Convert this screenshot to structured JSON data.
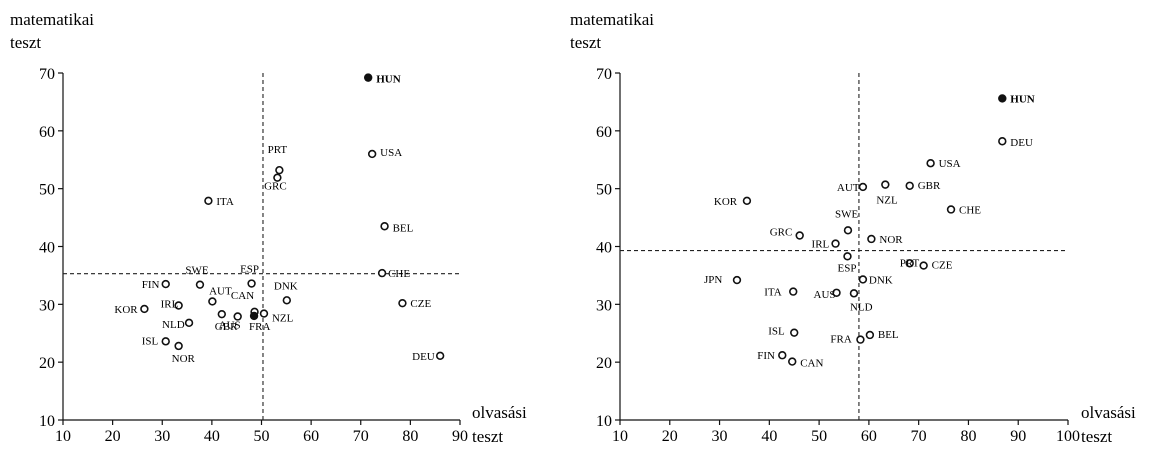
{
  "chart_data": [
    {
      "type": "scatter",
      "ylabel": "matematikai teszt",
      "xlabel": "olvasási teszt",
      "xlim": [
        10,
        90
      ],
      "ylim": [
        10,
        70
      ],
      "xticks": [
        "10",
        "20",
        "30",
        "40",
        "50",
        "60",
        "70",
        "80",
        "90"
      ],
      "yticks": [
        "10",
        "20",
        "30",
        "40",
        "50",
        "60",
        "70"
      ],
      "reference_lines": {
        "x": 50.3,
        "y": 35.3
      },
      "points": [
        {
          "label": "HUN",
          "x": 71.5,
          "y": 69.2,
          "filled": true
        },
        {
          "label": "USA",
          "x": 72.3,
          "y": 56.0,
          "filled": false
        },
        {
          "label": "PRT",
          "x": 53.6,
          "y": 53.2,
          "filled": false
        },
        {
          "label": "GRC",
          "x": 53.2,
          "y": 51.9,
          "filled": false
        },
        {
          "label": "ITA",
          "x": 39.3,
          "y": 47.9,
          "filled": false
        },
        {
          "label": "BEL",
          "x": 74.8,
          "y": 43.5,
          "filled": false
        },
        {
          "label": "CHE",
          "x": 74.3,
          "y": 35.4,
          "filled": false
        },
        {
          "label": "ESP",
          "x": 48.0,
          "y": 33.6,
          "filled": false
        },
        {
          "label": "SWE",
          "x": 37.6,
          "y": 33.4,
          "filled": false
        },
        {
          "label": "FIN",
          "x": 30.7,
          "y": 33.5,
          "filled": false
        },
        {
          "label": "DNK",
          "x": 55.1,
          "y": 30.7,
          "filled": false
        },
        {
          "label": "CZE",
          "x": 78.4,
          "y": 30.2,
          "filled": false
        },
        {
          "label": "AUT",
          "x": 40.1,
          "y": 30.5,
          "filled": false
        },
        {
          "label": "IRL",
          "x": 33.3,
          "y": 29.8,
          "filled": false
        },
        {
          "label": "KOR",
          "x": 26.4,
          "y": 29.2,
          "filled": false
        },
        {
          "label": "CAN",
          "x": 48.6,
          "y": 28.7,
          "filled": false
        },
        {
          "label": "GBR",
          "x": 42.0,
          "y": 28.3,
          "filled": false
        },
        {
          "label": "NZL",
          "x": 50.5,
          "y": 28.4,
          "filled": false
        },
        {
          "label": "FRA",
          "x": 48.5,
          "y": 28.0,
          "filled": true
        },
        {
          "label": "AUS",
          "x": 45.2,
          "y": 27.9,
          "filled": false
        },
        {
          "label": "NLD",
          "x": 35.4,
          "y": 26.8,
          "filled": false
        },
        {
          "label": "ISL",
          "x": 30.7,
          "y": 23.6,
          "filled": false
        },
        {
          "label": "NOR",
          "x": 33.3,
          "y": 22.8,
          "filled": false
        },
        {
          "label": "DEU",
          "x": 86.0,
          "y": 21.1,
          "filled": false
        }
      ]
    },
    {
      "type": "scatter",
      "ylabel": "matematikai teszt",
      "xlabel": "olvasási teszt",
      "xlim": [
        10,
        100
      ],
      "ylim": [
        10,
        70
      ],
      "xticks": [
        "10",
        "20",
        "30",
        "40",
        "50",
        "60",
        "70",
        "80",
        "90",
        "100"
      ],
      "yticks": [
        "10",
        "20",
        "30",
        "40",
        "50",
        "60",
        "70"
      ],
      "reference_lines": {
        "x": 58.0,
        "y": 39.3
      },
      "points": [
        {
          "label": "HUN",
          "x": 86.8,
          "y": 65.6,
          "filled": true
        },
        {
          "label": "DEU",
          "x": 86.8,
          "y": 58.2,
          "filled": false
        },
        {
          "label": "USA",
          "x": 72.4,
          "y": 54.4,
          "filled": false
        },
        {
          "label": "AUT",
          "x": 58.8,
          "y": 50.3,
          "filled": false
        },
        {
          "label": "NZL",
          "x": 63.3,
          "y": 50.7,
          "filled": false
        },
        {
          "label": "GBR",
          "x": 68.2,
          "y": 50.5,
          "filled": false
        },
        {
          "label": "KOR",
          "x": 35.5,
          "y": 47.9,
          "filled": false
        },
        {
          "label": "CHE",
          "x": 76.5,
          "y": 46.4,
          "filled": false
        },
        {
          "label": "SWE",
          "x": 55.8,
          "y": 42.8,
          "filled": false
        },
        {
          "label": "GRC",
          "x": 46.1,
          "y": 41.9,
          "filled": false
        },
        {
          "label": "NOR",
          "x": 60.5,
          "y": 41.3,
          "filled": false
        },
        {
          "label": "IRL",
          "x": 53.3,
          "y": 40.5,
          "filled": false
        },
        {
          "label": "ESP",
          "x": 55.7,
          "y": 38.3,
          "filled": false
        },
        {
          "label": "PRT",
          "x": 68.2,
          "y": 37.1,
          "filled": false
        },
        {
          "label": "CZE",
          "x": 71.0,
          "y": 36.7,
          "filled": false
        },
        {
          "label": "JPN",
          "x": 33.5,
          "y": 34.2,
          "filled": false
        },
        {
          "label": "DNK",
          "x": 58.8,
          "y": 34.3,
          "filled": false
        },
        {
          "label": "ITA",
          "x": 44.8,
          "y": 32.2,
          "filled": false
        },
        {
          "label": "AUS",
          "x": 53.5,
          "y": 32.0,
          "filled": false
        },
        {
          "label": "NLD",
          "x": 57.0,
          "y": 31.9,
          "filled": false
        },
        {
          "label": "ISL",
          "x": 45.0,
          "y": 25.1,
          "filled": false
        },
        {
          "label": "BEL",
          "x": 60.2,
          "y": 24.7,
          "filled": false
        },
        {
          "label": "FRA",
          "x": 58.3,
          "y": 23.9,
          "filled": false
        },
        {
          "label": "FIN",
          "x": 42.6,
          "y": 21.2,
          "filled": false
        },
        {
          "label": "CAN",
          "x": 44.6,
          "y": 20.1,
          "filled": false
        }
      ]
    }
  ]
}
